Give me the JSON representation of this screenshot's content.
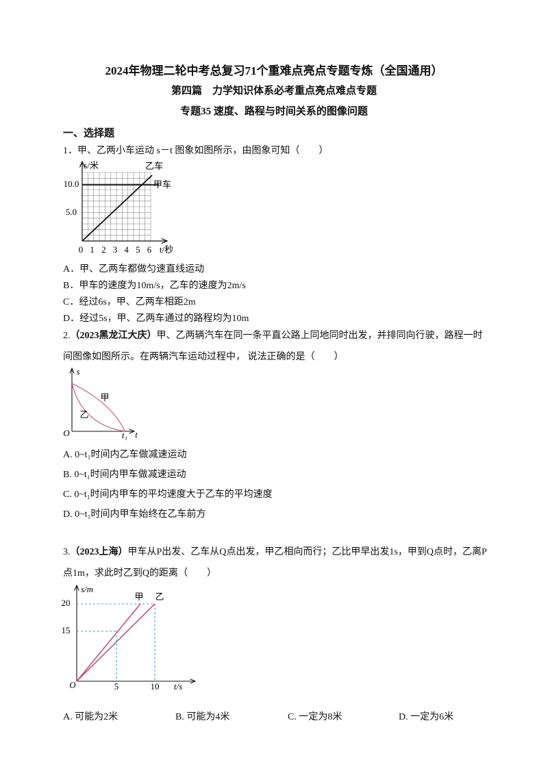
{
  "header": {
    "title": "2024年物理二轮中考总复习71个重难点亮点专题专炼（全国通用）",
    "subtitle": "第四篇　力学知识体系必考重点亮点难点专题",
    "topic": "专题35 速度、路程与时间关系的图像问题"
  },
  "section": "一、选择题",
  "questions": [
    {
      "stem": "1．甲、乙两小车运动 s－t 图象如图所示，由图象可知（　　）",
      "figure": {
        "y_label": "s/米",
        "x_label": "t/秒",
        "line_b": "乙车",
        "line_a": "甲车",
        "yticks": [
          "10.0",
          "5.0"
        ],
        "xticks": [
          "0",
          "1",
          "2",
          "3",
          "4",
          "5",
          "6"
        ]
      },
      "options": [
        "A．甲、乙两车都做匀速直线运动",
        "B．甲车的速度为10m/s，乙车的速度为2m/s",
        "C．经过6s，甲、乙两车相距2m",
        "D．经过5s，甲、乙两车通过的路程均为10m"
      ]
    },
    {
      "number": "2.",
      "source": "（2023黑龙江大庆）",
      "stem": "甲、乙两辆汽车在同一条平直公路上同地同时出发，并排同向行驶，路程一时间图像如图所示。在两辆汽车运动过程中， 说法正确的是（　　）",
      "figure": {
        "y_label": "s",
        "x_label": "t",
        "origin": "O",
        "t1": "t₁",
        "line_a": "甲",
        "line_b": "乙"
      },
      "options": [
        "A. 0~t₁时间内乙车做减速运动",
        "B. 0~t₁时间内甲车做减速运动",
        "C. 0~t₁时间内甲车的平均速度大于乙车的平均速度",
        "D. 0~t₁时间内甲车始终在乙车前方"
      ]
    },
    {
      "number": "3.",
      "source": "（2023上海）",
      "stem": "甲车从P出发、乙车从Q点出发，甲乙相向而行；乙比甲早出发1s，甲到Q点时，乙离P点1m，求此时乙到Q的距离（　　）",
      "figure": {
        "y_label": "s/m",
        "x_label": "t/s",
        "origin": "O",
        "line_a": "甲",
        "line_b": "乙",
        "yticks": [
          "20",
          "15"
        ],
        "xticks": [
          "5",
          "10"
        ]
      },
      "options": [
        "A. 可能为2米",
        "B. 可能为4米",
        "C. 一定为8米",
        "D. 一定为6米"
      ]
    }
  ]
}
